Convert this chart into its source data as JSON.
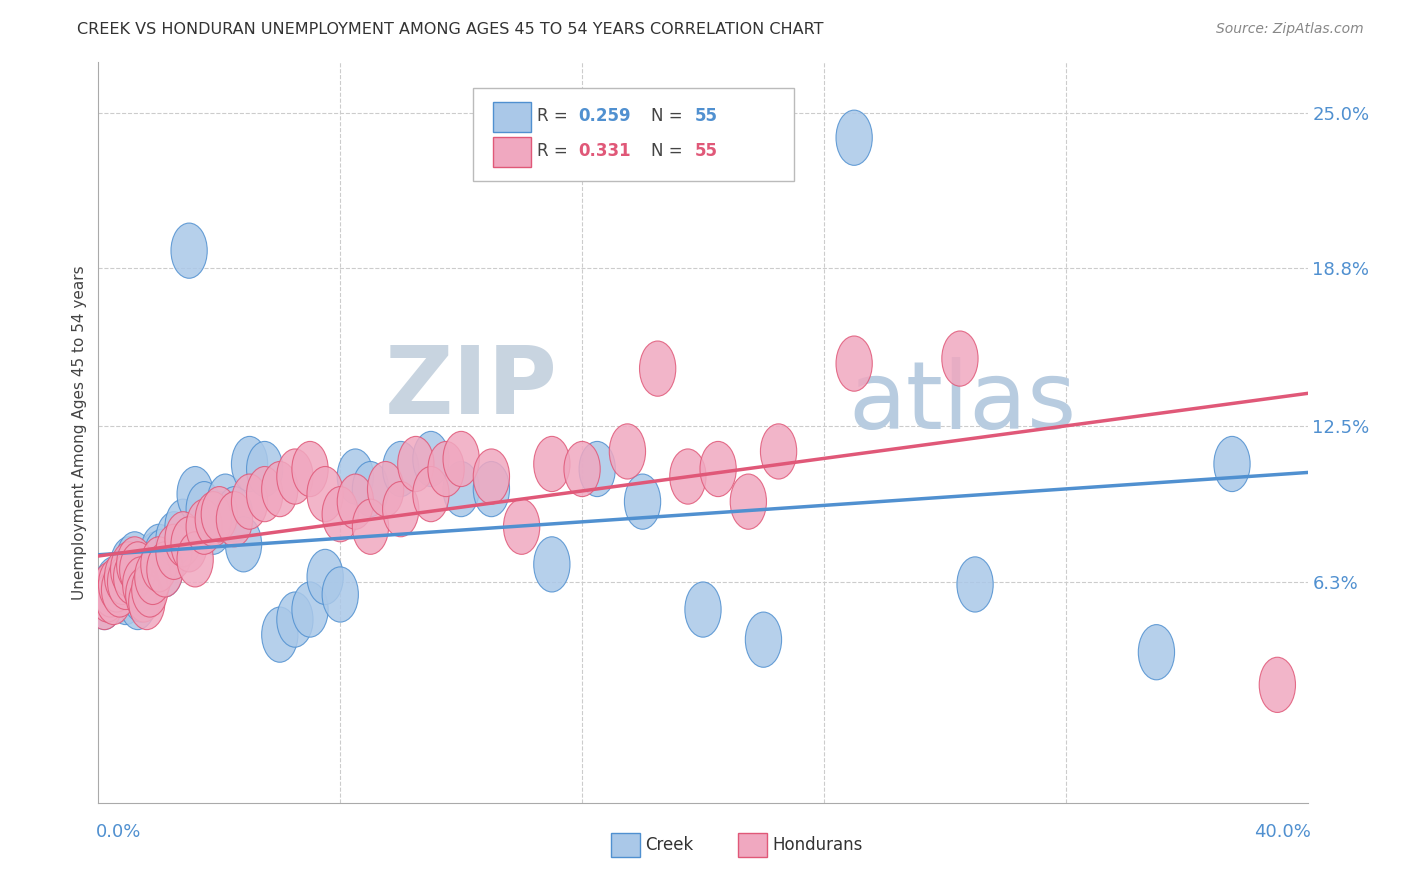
{
  "title": "CREEK VS HONDURAN UNEMPLOYMENT AMONG AGES 45 TO 54 YEARS CORRELATION CHART",
  "source": "Source: ZipAtlas.com",
  "ylabel": "Unemployment Among Ages 45 to 54 years",
  "ytick_labels": [
    "6.3%",
    "12.5%",
    "18.8%",
    "25.0%"
  ],
  "ytick_values": [
    0.063,
    0.125,
    0.188,
    0.25
  ],
  "xlim": [
    0.0,
    0.4
  ],
  "ylim": [
    -0.025,
    0.27
  ],
  "creek_R": 0.259,
  "creek_N": 55,
  "honduran_R": 0.331,
  "honduran_N": 55,
  "creek_color": "#aac8e8",
  "honduran_color": "#f0a8c0",
  "creek_line_color": "#5090d0",
  "honduran_line_color": "#e05878",
  "watermark_zip_color": "#c8d8e8",
  "watermark_atlas_color": "#c8d8e8",
  "creek_x": [
    0.002,
    0.003,
    0.004,
    0.005,
    0.006,
    0.007,
    0.008,
    0.009,
    0.01,
    0.01,
    0.011,
    0.012,
    0.013,
    0.013,
    0.014,
    0.015,
    0.016,
    0.017,
    0.018,
    0.019,
    0.02,
    0.021,
    0.022,
    0.025,
    0.028,
    0.03,
    0.032,
    0.035,
    0.038,
    0.04,
    0.042,
    0.045,
    0.048,
    0.05,
    0.055,
    0.06,
    0.065,
    0.07,
    0.075,
    0.08,
    0.085,
    0.09,
    0.1,
    0.11,
    0.12,
    0.13,
    0.15,
    0.165,
    0.18,
    0.2,
    0.22,
    0.25,
    0.29,
    0.35,
    0.375
  ],
  "creek_y": [
    0.055,
    0.058,
    0.06,
    0.062,
    0.06,
    0.058,
    0.063,
    0.057,
    0.065,
    0.07,
    0.068,
    0.072,
    0.065,
    0.055,
    0.058,
    0.06,
    0.068,
    0.063,
    0.07,
    0.072,
    0.075,
    0.073,
    0.068,
    0.08,
    0.085,
    0.195,
    0.098,
    0.092,
    0.085,
    0.088,
    0.095,
    0.09,
    0.078,
    0.11,
    0.108,
    0.042,
    0.048,
    0.052,
    0.065,
    0.058,
    0.105,
    0.1,
    0.108,
    0.112,
    0.1,
    0.1,
    0.07,
    0.108,
    0.095,
    0.052,
    0.04,
    0.24,
    0.062,
    0.035,
    0.11
  ],
  "honduran_x": [
    0.002,
    0.003,
    0.004,
    0.005,
    0.006,
    0.007,
    0.008,
    0.009,
    0.01,
    0.011,
    0.012,
    0.013,
    0.014,
    0.015,
    0.016,
    0.017,
    0.018,
    0.02,
    0.022,
    0.025,
    0.028,
    0.03,
    0.032,
    0.035,
    0.038,
    0.04,
    0.045,
    0.05,
    0.055,
    0.06,
    0.065,
    0.07,
    0.075,
    0.08,
    0.085,
    0.09,
    0.095,
    0.1,
    0.105,
    0.11,
    0.115,
    0.12,
    0.13,
    0.14,
    0.15,
    0.16,
    0.175,
    0.185,
    0.195,
    0.205,
    0.215,
    0.225,
    0.25,
    0.285,
    0.39
  ],
  "honduran_y": [
    0.055,
    0.058,
    0.06,
    0.057,
    0.062,
    0.06,
    0.065,
    0.063,
    0.068,
    0.065,
    0.07,
    0.068,
    0.062,
    0.058,
    0.055,
    0.06,
    0.065,
    0.07,
    0.068,
    0.075,
    0.08,
    0.078,
    0.072,
    0.085,
    0.088,
    0.09,
    0.088,
    0.095,
    0.098,
    0.1,
    0.105,
    0.108,
    0.098,
    0.09,
    0.095,
    0.085,
    0.1,
    0.092,
    0.11,
    0.098,
    0.108,
    0.112,
    0.105,
    0.085,
    0.11,
    0.108,
    0.115,
    0.148,
    0.105,
    0.108,
    0.095,
    0.115,
    0.15,
    0.152,
    0.022
  ]
}
